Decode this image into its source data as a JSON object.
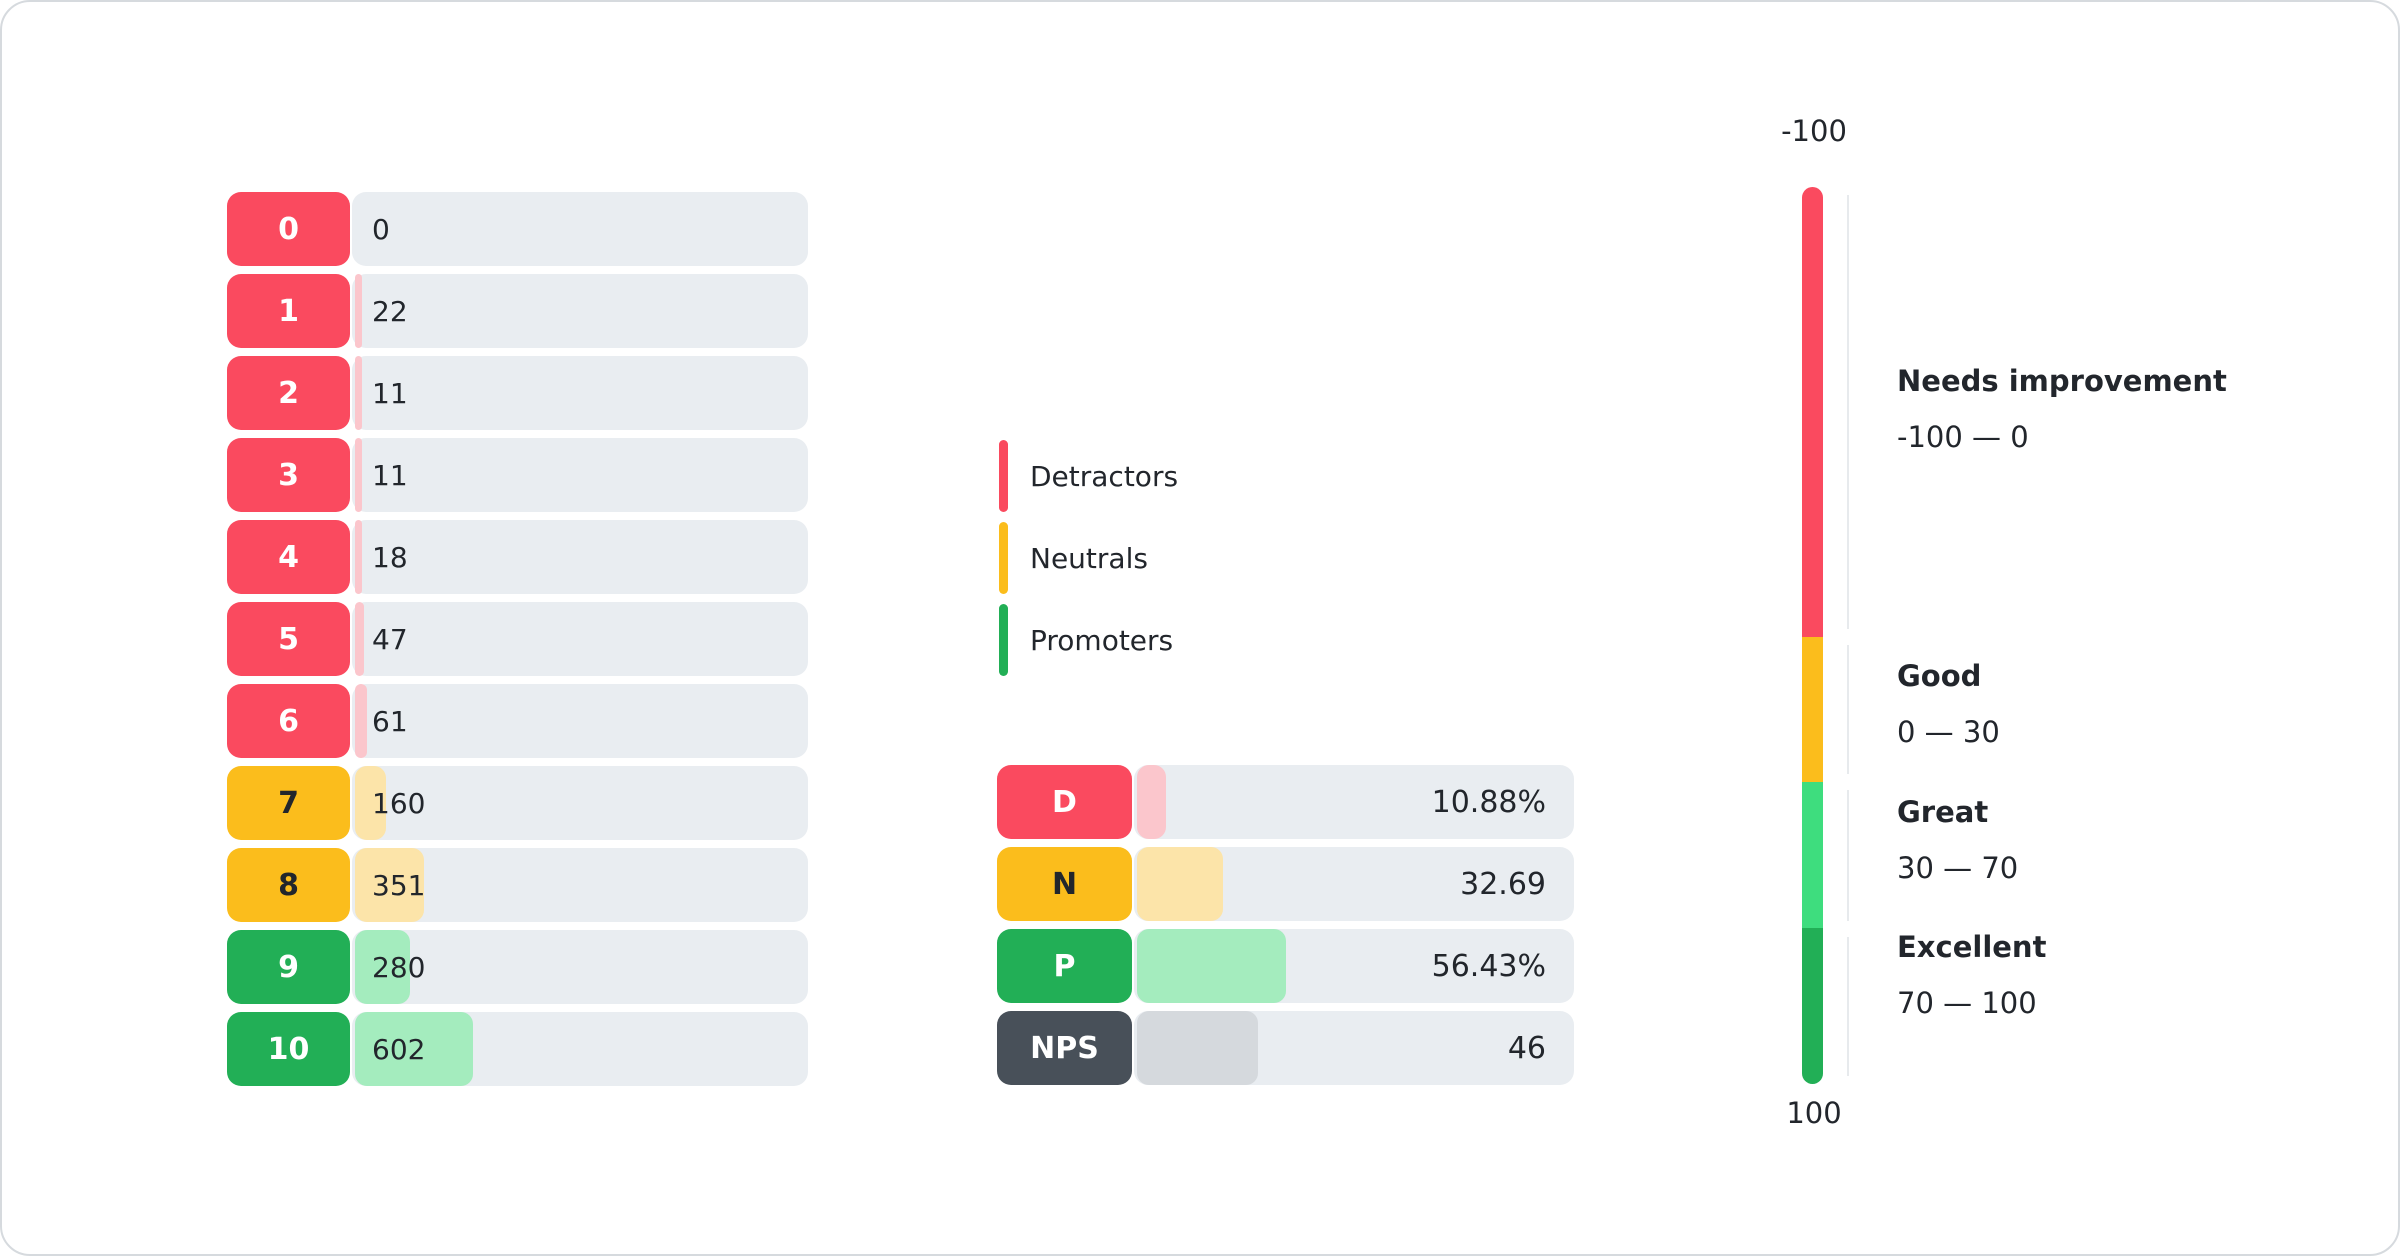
{
  "palette": {
    "red": "#FA4A5F",
    "red-fill": "#FBC6CC",
    "amber": "#FBBD1C",
    "amber-fill": "#FCE4A9",
    "green": "#22AF56",
    "green-fill": "#A4ECBE",
    "green-bright": "#3EDD7E",
    "slate": "#485059",
    "slate-fill": "#D5D9DD",
    "track": "#E9EDF1",
    "ink": "#22262C",
    "border": "#D6DADE",
    "axis": "#E7EAED"
  },
  "scores": {
    "rows": [
      {
        "label": "0",
        "display": "0",
        "value": 0,
        "category": "detractor"
      },
      {
        "label": "1",
        "display": "22",
        "value": 22,
        "category": "detractor"
      },
      {
        "label": "2",
        "display": "11",
        "value": 11,
        "category": "detractor"
      },
      {
        "label": "3",
        "display": "11",
        "value": 11,
        "category": "detractor"
      },
      {
        "label": "4",
        "display": "18",
        "value": 18,
        "category": "detractor"
      },
      {
        "label": "5",
        "display": "47",
        "value": 47,
        "category": "detractor"
      },
      {
        "label": "6",
        "display": "61",
        "value": 61,
        "category": "detractor"
      },
      {
        "label": "7",
        "display": "160",
        "value": 160,
        "category": "neutral"
      },
      {
        "label": "8",
        "display": "351",
        "value": 351,
        "category": "neutral"
      },
      {
        "label": "9",
        "display": "280",
        "value": 280,
        "category": "promoter"
      },
      {
        "label": "10",
        "display": "602",
        "value": 602,
        "category": "promoter"
      }
    ]
  },
  "legend": {
    "items": [
      {
        "label": "Detractors",
        "category": "detractor"
      },
      {
        "label": "Neutrals",
        "category": "neutral"
      },
      {
        "label": "Promoters",
        "category": "promoter"
      }
    ]
  },
  "summary": {
    "rows": [
      {
        "label": "D",
        "display": "10.88%",
        "value": 10.88,
        "category": "detractor"
      },
      {
        "label": "N",
        "display": "32.69",
        "value": 32.69,
        "category": "neutral"
      },
      {
        "label": "P",
        "display": "56.43%",
        "value": 56.43,
        "category": "promoter"
      },
      {
        "label": "NPS",
        "display": "46",
        "value": 46,
        "category": "nps"
      }
    ]
  },
  "gauge": {
    "top_label": "-100",
    "bottom_label": "100",
    "zones": [
      {
        "title": "Needs improvement",
        "range": "-100 — 0"
      },
      {
        "title": "Good",
        "range": "0 — 30"
      },
      {
        "title": "Great",
        "range": "30 — 70"
      },
      {
        "title": "Excellent",
        "range": "70 — 100"
      }
    ]
  },
  "chart_data": [
    {
      "type": "bar",
      "orientation": "horizontal",
      "title": "",
      "xlabel": "",
      "ylabel": "",
      "categories": [
        "0",
        "1",
        "2",
        "3",
        "4",
        "5",
        "6",
        "7",
        "8",
        "9",
        "10"
      ],
      "values": [
        0,
        22,
        11,
        11,
        18,
        47,
        61,
        160,
        351,
        280,
        602
      ],
      "series_groups": {
        "detractors": [
          "0",
          "1",
          "2",
          "3",
          "4",
          "5",
          "6"
        ],
        "neutrals": [
          "7",
          "8"
        ],
        "promoters": [
          "9",
          "10"
        ]
      },
      "legend_entries": [
        "Detractors",
        "Neutrals",
        "Promoters"
      ],
      "legend_position": "right",
      "grid": false
    },
    {
      "type": "bar",
      "orientation": "horizontal",
      "categories": [
        "D",
        "N",
        "P",
        "NPS"
      ],
      "values": [
        10.88,
        32.69,
        56.43,
        46
      ],
      "value_labels": [
        "10.88%",
        "32.69",
        "56.43%",
        "46"
      ],
      "grid": false
    },
    {
      "type": "gauge",
      "orientation": "vertical",
      "axis_range": [
        -100,
        100
      ],
      "tick_labels": [
        "-100",
        "100"
      ],
      "zones": [
        {
          "label": "Needs improvement",
          "from": -100,
          "to": 0
        },
        {
          "label": "Good",
          "from": 0,
          "to": 30
        },
        {
          "label": "Great",
          "from": 30,
          "to": 70
        },
        {
          "label": "Excellent",
          "from": 70,
          "to": 100
        }
      ]
    }
  ]
}
